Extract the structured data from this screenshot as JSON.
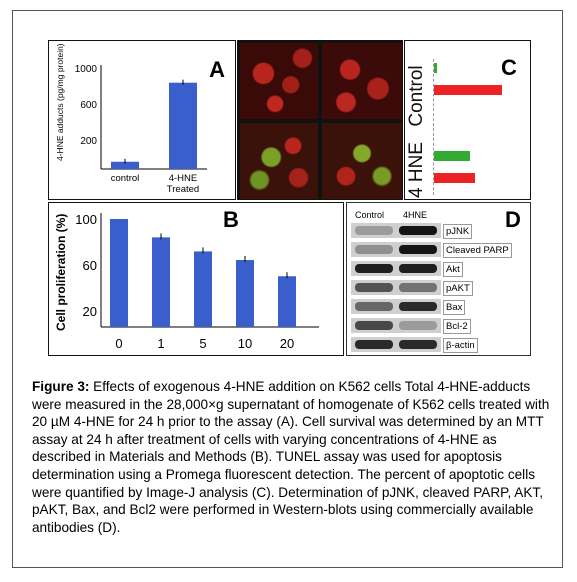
{
  "figure": {
    "caption_label": "Figure 3:",
    "caption_text": " Effects of exogenous 4-HNE addition on K562 cells Total 4-HNE-adducts were measured in the 28,000×g supernatant of homogenate of K562 cells treated with 20 µM 4-HNE for 24 h prior to the assay (A).  Cell survival was determined by an MTT assay at 24 h after treatment of cells with varying concentrations of 4-HNE as described in Materials and Methods (B).  TUNEL assay was used for apoptosis determination using a Promega fluorescent detection.  The percent of apoptotic cells were quantified by Image-J analysis (C).  Determination of pJNK, cleaved PARP, AKT, pAKT, Bax, and Bcl2 were performed in Western-blots using commercially available antibodies (D)."
  },
  "panel_a": {
    "letter": "A",
    "ylabel": "4-HNE adducts (pg/mg protein)",
    "yticks": [
      "1000",
      "600",
      "200"
    ],
    "bars": [
      {
        "label": "control",
        "value": 70
      },
      {
        "label": "4-HNE\nTreated",
        "value": 830
      }
    ],
    "ylim": [
      0,
      1000
    ],
    "bar_color": "#3a5fcd"
  },
  "panel_b": {
    "letter": "B",
    "ylabel": "Cell proliferation (%)",
    "yticks": [
      "100",
      "60",
      "20"
    ],
    "xticks": [
      "0",
      "1",
      "5",
      "10",
      "20"
    ],
    "ylim": [
      0,
      100
    ],
    "bar_color": "#3a5fcd"
  },
  "panel_c": {
    "letter": "C",
    "group_control": "Control",
    "group_hne": "4 HNE",
    "green": "#33aa33",
    "red": "#ee2222"
  },
  "panel_d": {
    "letter": "D",
    "col_control": "Control",
    "col_hne": "4HNE",
    "blots": [
      "pJNK",
      "Cleaved PARP",
      "Akt",
      "pAKT",
      "Bax",
      "Bcl-2",
      "β-actin"
    ]
  },
  "chart_data": [
    {
      "type": "bar",
      "title": "A",
      "categories": [
        "control",
        "4-HNE Treated"
      ],
      "values": [
        70,
        830
      ],
      "ylabel": "4-HNE adducts (pg/mg protein)",
      "ylim": [
        0,
        1000
      ]
    },
    {
      "type": "bar",
      "title": "B",
      "categories": [
        "0",
        "1",
        "5",
        "10",
        "20"
      ],
      "values": [
        100,
        83,
        70,
        62,
        47
      ],
      "ylabel": "Cell proliferation (%)",
      "ylim": [
        0,
        100
      ]
    },
    {
      "type": "bar",
      "title": "C",
      "categories": [
        "Control green",
        "Control red",
        "4 HNE green",
        "4 HNE red"
      ],
      "values": [
        2,
        100,
        55,
        55
      ],
      "orientation": "horizontal"
    }
  ]
}
